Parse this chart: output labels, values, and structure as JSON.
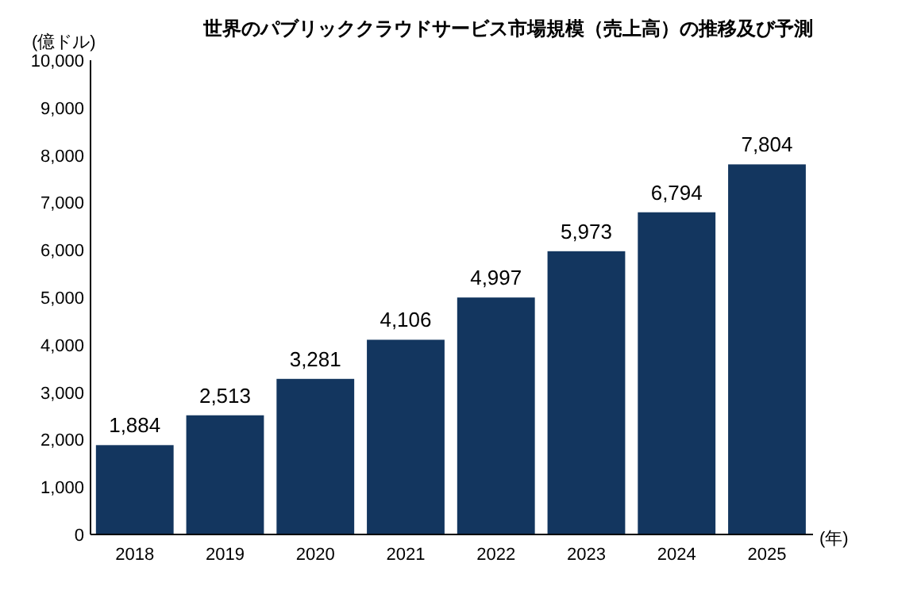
{
  "chart_data": {
    "type": "bar",
    "title": "世界のパブリッククラウドサービス市場規模（売上高）の推移及び予測",
    "ylabel": "(億ドル)",
    "xlabel": "(年)",
    "categories": [
      "2018",
      "2019",
      "2020",
      "2021",
      "2022",
      "2023",
      "2024",
      "2025"
    ],
    "values": [
      1884,
      2513,
      3281,
      4106,
      4997,
      5973,
      6794,
      7804
    ],
    "value_labels": [
      "1,884",
      "2,513",
      "3,281",
      "4,106",
      "4,997",
      "5,973",
      "6,794",
      "7,804"
    ],
    "color": "#13365f",
    "ylim": [
      0,
      10000
    ],
    "yticks": [
      0,
      {
        "value": 1000,
        "label": "1,000"
      },
      {
        "value": 2000,
        "label": "2,000"
      },
      {
        "value": 3000,
        "label": "3,000"
      },
      {
        "value": 4000,
        "label": "4,000"
      },
      {
        "value": 5000,
        "label": "5,000"
      },
      {
        "value": 6000,
        "label": "6,000"
      },
      {
        "value": 7000,
        "label": "7,000"
      },
      {
        "value": 8000,
        "label": "8,000"
      },
      {
        "value": 9000,
        "label": "9,000"
      },
      {
        "value": 10000,
        "label": "10,000"
      }
    ],
    "grid": false
  }
}
